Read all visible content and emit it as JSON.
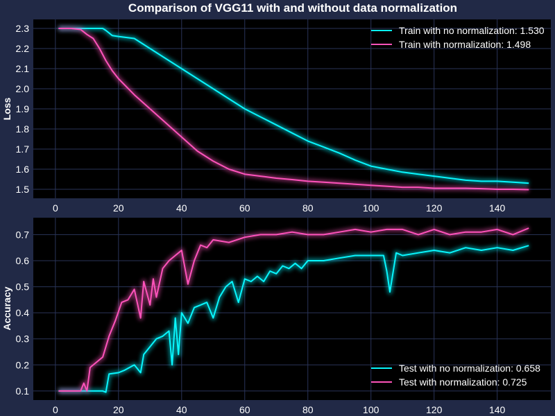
{
  "title": "Comparison of VGG11 with and without data normalization",
  "colors": {
    "background": "#212946",
    "plot_background": "#000000",
    "grid": "#2A3459",
    "text": "#ffffff",
    "series_no_norm": "#08F7FE",
    "series_norm": "#FE53BB"
  },
  "chart_data": [
    {
      "type": "line",
      "title": "Comparison of VGG11 with and without data normalization",
      "xlabel": "",
      "ylabel": "Loss",
      "xlim": [
        -7,
        157
      ],
      "ylim": [
        1.455,
        2.345
      ],
      "xticks": [
        0,
        20,
        40,
        60,
        80,
        100,
        120,
        140
      ],
      "yticks": [
        1.5,
        1.6,
        1.7,
        1.8,
        1.9,
        2.0,
        2.1,
        2.2,
        2.3
      ],
      "ytick_labels": [
        "1.5",
        "1.6",
        "1.7",
        "1.8",
        "1.9",
        "2.0",
        "2.1",
        "2.2",
        "2.3"
      ],
      "grid": true,
      "legend_position": "top-right",
      "series": [
        {
          "name": "Train with no normalization: 1.530",
          "color": "#08F7FE",
          "x": [
            1,
            5,
            10,
            15,
            16,
            18,
            20,
            25,
            30,
            35,
            40,
            45,
            50,
            55,
            60,
            65,
            70,
            75,
            80,
            85,
            90,
            95,
            100,
            105,
            110,
            115,
            120,
            125,
            130,
            135,
            140,
            145,
            150
          ],
          "values": [
            2.3,
            2.3,
            2.3,
            2.3,
            2.29,
            2.265,
            2.26,
            2.25,
            2.2,
            2.15,
            2.1,
            2.05,
            2.0,
            1.95,
            1.9,
            1.86,
            1.82,
            1.78,
            1.74,
            1.71,
            1.68,
            1.645,
            1.615,
            1.6,
            1.585,
            1.575,
            1.565,
            1.555,
            1.545,
            1.54,
            1.54,
            1.535,
            1.53
          ]
        },
        {
          "name": "Train with normalization: 1.498",
          "color": "#FE53BB",
          "x": [
            1,
            5,
            8,
            10,
            12,
            14,
            16,
            18,
            20,
            25,
            30,
            35,
            40,
            45,
            50,
            55,
            60,
            65,
            70,
            75,
            80,
            85,
            90,
            95,
            100,
            105,
            110,
            115,
            120,
            125,
            130,
            135,
            140,
            145,
            150
          ],
          "values": [
            2.3,
            2.3,
            2.295,
            2.27,
            2.25,
            2.2,
            2.14,
            2.09,
            2.05,
            1.97,
            1.9,
            1.83,
            1.76,
            1.69,
            1.64,
            1.6,
            1.575,
            1.565,
            1.555,
            1.548,
            1.54,
            1.535,
            1.53,
            1.525,
            1.52,
            1.515,
            1.51,
            1.51,
            1.505,
            1.505,
            1.505,
            1.503,
            1.5,
            1.5,
            1.498
          ]
        }
      ]
    },
    {
      "type": "line",
      "xlabel": "",
      "ylabel": "Accuracy",
      "xlim": [
        -7,
        157
      ],
      "ylim": [
        0.065,
        0.765
      ],
      "xticks": [
        0,
        20,
        40,
        60,
        80,
        100,
        120,
        140
      ],
      "yticks": [
        0.1,
        0.2,
        0.3,
        0.4,
        0.5,
        0.6,
        0.7
      ],
      "ytick_labels": [
        "0.1",
        "0.2",
        "0.3",
        "0.4",
        "0.5",
        "0.6",
        "0.7"
      ],
      "grid": true,
      "legend_position": "bottom-right",
      "series": [
        {
          "name": "Test with no normalization: 0.658",
          "color": "#08F7FE",
          "x": [
            1,
            5,
            10,
            15,
            16,
            17,
            20,
            22,
            25,
            27,
            28,
            30,
            32,
            34,
            36,
            37,
            38,
            39,
            40,
            42,
            44,
            46,
            48,
            50,
            52,
            54,
            56,
            58,
            60,
            62,
            64,
            66,
            68,
            70,
            72,
            74,
            76,
            78,
            80,
            85,
            90,
            95,
            100,
            104,
            105,
            106,
            108,
            110,
            115,
            120,
            125,
            130,
            135,
            140,
            145,
            150
          ],
          "values": [
            0.1,
            0.1,
            0.1,
            0.1,
            0.095,
            0.165,
            0.17,
            0.18,
            0.2,
            0.17,
            0.24,
            0.27,
            0.3,
            0.31,
            0.33,
            0.2,
            0.38,
            0.24,
            0.4,
            0.36,
            0.42,
            0.43,
            0.44,
            0.38,
            0.46,
            0.5,
            0.52,
            0.44,
            0.53,
            0.52,
            0.54,
            0.52,
            0.56,
            0.55,
            0.58,
            0.57,
            0.59,
            0.57,
            0.6,
            0.6,
            0.61,
            0.62,
            0.62,
            0.62,
            0.56,
            0.48,
            0.63,
            0.62,
            0.63,
            0.64,
            0.63,
            0.65,
            0.64,
            0.65,
            0.64,
            0.658
          ]
        },
        {
          "name": "Test with normalization: 0.725",
          "color": "#FE53BB",
          "x": [
            1,
            5,
            8,
            9,
            10,
            11,
            13,
            15,
            17,
            19,
            21,
            23,
            25,
            27,
            28,
            30,
            31,
            32,
            34,
            36,
            38,
            40,
            42,
            44,
            46,
            48,
            50,
            55,
            60,
            65,
            70,
            75,
            80,
            85,
            90,
            95,
            100,
            105,
            110,
            115,
            120,
            125,
            130,
            135,
            140,
            145,
            150
          ],
          "values": [
            0.1,
            0.1,
            0.1,
            0.13,
            0.1,
            0.19,
            0.21,
            0.23,
            0.31,
            0.37,
            0.44,
            0.45,
            0.49,
            0.38,
            0.52,
            0.43,
            0.53,
            0.46,
            0.57,
            0.6,
            0.62,
            0.64,
            0.51,
            0.6,
            0.66,
            0.65,
            0.68,
            0.67,
            0.69,
            0.7,
            0.7,
            0.71,
            0.7,
            0.7,
            0.71,
            0.72,
            0.71,
            0.72,
            0.72,
            0.7,
            0.72,
            0.7,
            0.71,
            0.71,
            0.72,
            0.7,
            0.725
          ]
        }
      ]
    }
  ]
}
